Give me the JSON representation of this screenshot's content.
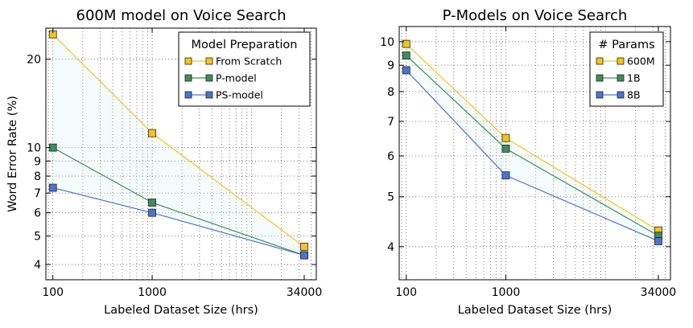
{
  "chart_data": [
    {
      "type": "line",
      "title": "600M model on Voice Search",
      "xlabel": "Labeled Dataset Size (hrs)",
      "ylabel": "Word Error Rate (%)",
      "x_scale": "log",
      "y_scale": "log",
      "x": [
        100,
        1000,
        34000
      ],
      "x_tick_labels": [
        "100",
        "1000",
        "34000"
      ],
      "y_tick_labels": [
        "4",
        "5",
        "6",
        "7",
        "8",
        "9",
        "10",
        "20"
      ],
      "xlim": [
        85,
        45000
      ],
      "ylim": [
        3.55,
        25.5
      ],
      "grid": true,
      "legend": {
        "title": "Model Preparation",
        "position": "top-right"
      },
      "series": [
        {
          "name": "From Scratch",
          "color": "#f5c518",
          "values": [
            24.3,
            11.2,
            4.6
          ]
        },
        {
          "name": "P-model",
          "color": "#3e8e5a",
          "values": [
            10.0,
            6.5,
            4.3
          ]
        },
        {
          "name": "PS-model",
          "color": "#4a74d0",
          "values": [
            7.3,
            6.0,
            4.3
          ]
        }
      ]
    },
    {
      "type": "line",
      "title": "P-Models on Voice Search",
      "xlabel": "Labeled Dataset Size (hrs)",
      "ylabel": "",
      "x_scale": "log",
      "y_scale": "log",
      "x": [
        100,
        1000,
        34000
      ],
      "x_tick_labels": [
        "100",
        "1000",
        "34000"
      ],
      "y_tick_labels": [
        "4",
        "5",
        "6",
        "7",
        "8",
        "9",
        "10"
      ],
      "xlim": [
        85,
        45000
      ],
      "ylim": [
        3.45,
        10.7
      ],
      "grid": true,
      "legend": {
        "title": "# Params",
        "position": "top-right"
      },
      "series": [
        {
          "name": "600M",
          "color": "#f5c518",
          "values": [
            9.9,
            6.5,
            4.3
          ]
        },
        {
          "name": "1B",
          "color": "#3e8e5a",
          "values": [
            9.4,
            6.2,
            4.2
          ]
        },
        {
          "name": "8B",
          "color": "#4a74d0",
          "values": [
            8.8,
            5.5,
            4.1
          ]
        }
      ]
    }
  ]
}
